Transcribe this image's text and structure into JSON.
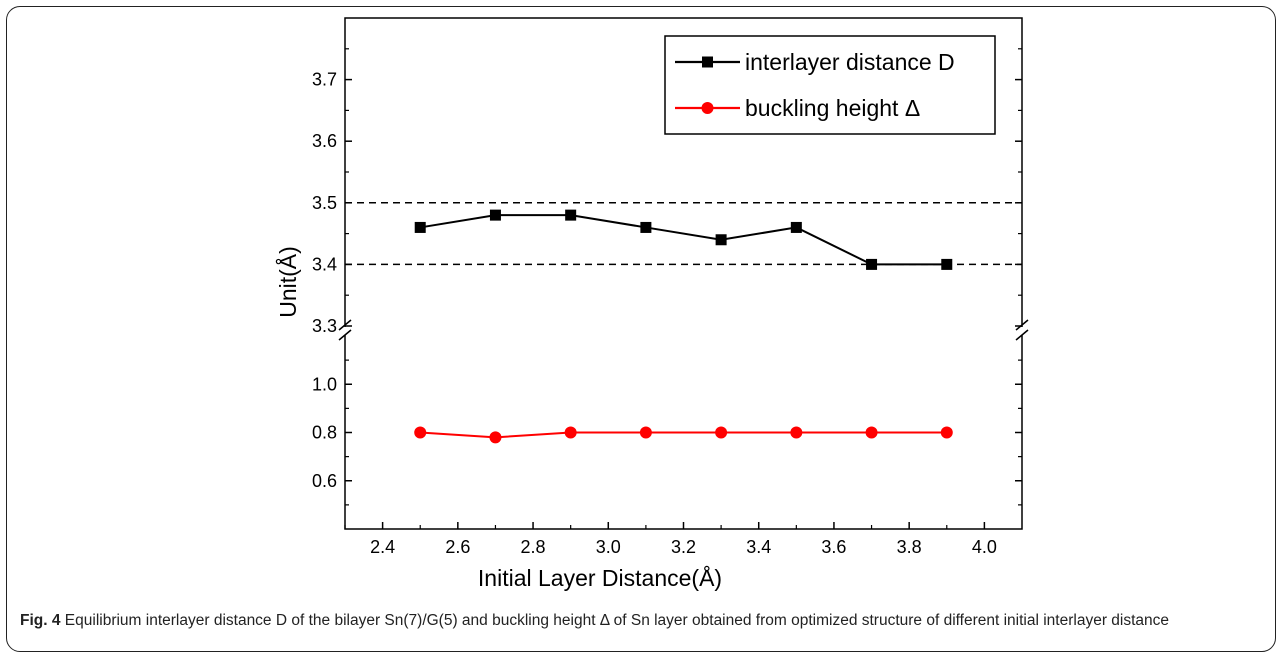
{
  "chart_data": {
    "type": "line",
    "x": [
      2.5,
      2.7,
      2.9,
      3.1,
      3.3,
      3.5,
      3.7,
      3.9
    ],
    "xlabel": "Initial Layer Distance(Å)",
    "ylabel": "Unit(Å)",
    "xlim": [
      2.3,
      4.1
    ],
    "x_ticks": [
      "2.4",
      "2.6",
      "2.8",
      "3.0",
      "3.2",
      "3.4",
      "3.6",
      "3.8",
      "4.0"
    ],
    "y_axis_break": true,
    "y_upper_range": [
      3.3,
      3.8
    ],
    "y_upper_ticks": [
      "3.3",
      "3.4",
      "3.5",
      "3.6",
      "3.7"
    ],
    "y_lower_range": [
      0.4,
      1.2
    ],
    "y_lower_ticks": [
      "0.6",
      "0.8",
      "1.0"
    ],
    "reference_lines": [
      3.4,
      3.5
    ],
    "legend_position": "top-right",
    "series": [
      {
        "name": "interlayer distance D",
        "values": [
          3.46,
          3.48,
          3.48,
          3.46,
          3.44,
          3.46,
          3.4,
          3.4
        ],
        "color": "#000000",
        "marker": "square"
      },
      {
        "name": "buckling height Δ",
        "values": [
          0.8,
          0.78,
          0.8,
          0.8,
          0.8,
          0.8,
          0.8,
          0.8
        ],
        "color": "#ff0000",
        "marker": "circle"
      }
    ]
  },
  "caption": {
    "label": "Fig. 4",
    "text": "Equilibrium interlayer distance D of the bilayer Sn(7)/G(5) and buckling height Δ of Sn layer obtained from optimized structure of different initial interlayer distance"
  }
}
